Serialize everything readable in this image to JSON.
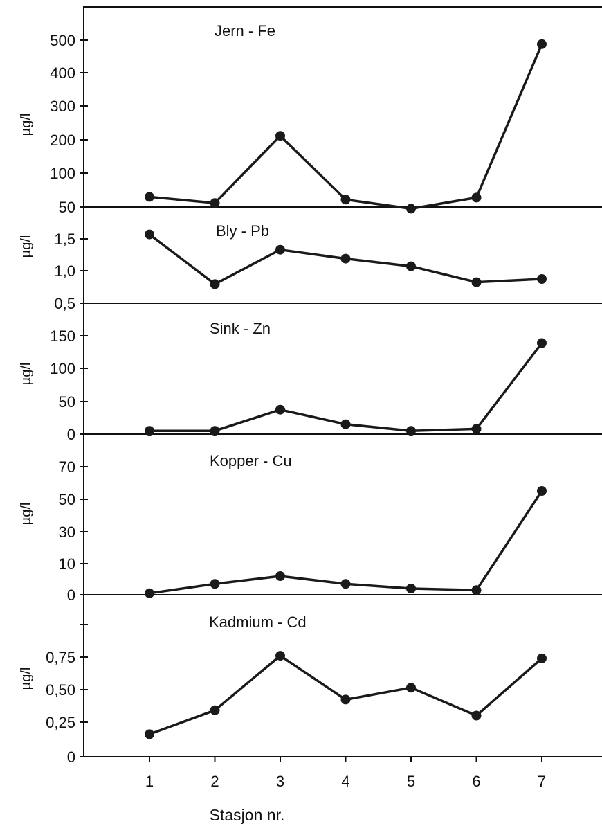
{
  "x_axis": {
    "label": "Stasjon nr.",
    "ticks": [
      "1",
      "2",
      "3",
      "4",
      "5",
      "6",
      "7"
    ]
  },
  "chart_data": [
    {
      "type": "line",
      "title": "Jern - Fe",
      "ylabel": "µg/l",
      "ylim": [
        50,
        550
      ],
      "y_ticks": [
        "50",
        "100",
        "200",
        "300",
        "400",
        "500"
      ],
      "x": [
        1,
        2,
        3,
        4,
        5,
        6,
        7
      ],
      "values": [
        80,
        62,
        262,
        72,
        45,
        78,
        535
      ]
    },
    {
      "type": "line",
      "title": "Bly - Pb",
      "ylabel": "µg/l",
      "ylim": [
        0.5,
        1.85
      ],
      "y_ticks": [
        "0,5",
        "1,0",
        "1,5"
      ],
      "x": [
        1,
        2,
        3,
        4,
        5,
        6,
        7
      ],
      "values": [
        1.58,
        0.8,
        1.34,
        1.2,
        1.08,
        0.83,
        0.88
      ]
    },
    {
      "type": "line",
      "title": "Sink - Zn",
      "ylabel": "µg/l",
      "ylim": [
        0,
        170
      ],
      "y_ticks": [
        "0",
        "50",
        "100",
        "150"
      ],
      "x": [
        1,
        2,
        3,
        4,
        5,
        6,
        7
      ],
      "values": [
        5,
        5,
        37,
        15,
        5,
        8,
        138
      ]
    },
    {
      "type": "line",
      "title": "Kopper - Cu",
      "ylabel": "µg/l",
      "y_ticks": [
        "0",
        "10",
        "30",
        "50",
        "70"
      ],
      "x": [
        1,
        2,
        3,
        4,
        5,
        6,
        7
      ],
      "values": [
        0.5,
        3.5,
        6,
        3.5,
        2,
        1.5,
        55
      ]
    },
    {
      "type": "line",
      "title": "Kadmium - Cd",
      "ylabel": "µg/l",
      "ylim": [
        0,
        1.0
      ],
      "y_ticks": [
        "0",
        "0,25",
        "0,50",
        "0,75"
      ],
      "x": [
        1,
        2,
        3,
        4,
        5,
        6,
        7
      ],
      "values": [
        0.17,
        0.35,
        0.76,
        0.43,
        0.52,
        0.31,
        0.74
      ]
    }
  ]
}
